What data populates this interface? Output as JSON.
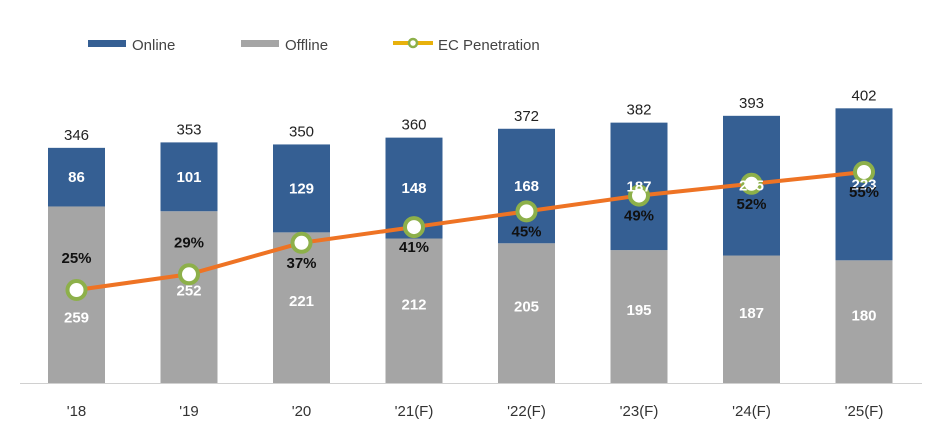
{
  "chart_data": {
    "type": "bar",
    "stacked": true,
    "categories": [
      "'18",
      "'19",
      "'20",
      "'21(F)",
      "'22(F)",
      "'23(F)",
      "'24(F)",
      "'25(F)"
    ],
    "series": [
      {
        "name": "Online",
        "values": [
          86,
          101,
          129,
          148,
          168,
          187,
          205,
          223
        ],
        "color": "#355f93"
      },
      {
        "name": "Offline",
        "values": [
          259,
          252,
          221,
          212,
          205,
          195,
          187,
          180
        ],
        "color": "#a5a5a5"
      }
    ],
    "totals": [
      346,
      353,
      350,
      360,
      372,
      382,
      393,
      402
    ],
    "line_series": {
      "name": "EC Penetration",
      "values": [
        25,
        29,
        37,
        41,
        45,
        49,
        52,
        55
      ],
      "labels": [
        "25%",
        "29%",
        "37%",
        "41%",
        "45%",
        "49%",
        "52%",
        "55%"
      ],
      "color": "#ee7324",
      "marker_color": "#8db04a"
    },
    "ylim": [
      0,
      402
    ],
    "legend_position": "top-left",
    "grid": false
  }
}
